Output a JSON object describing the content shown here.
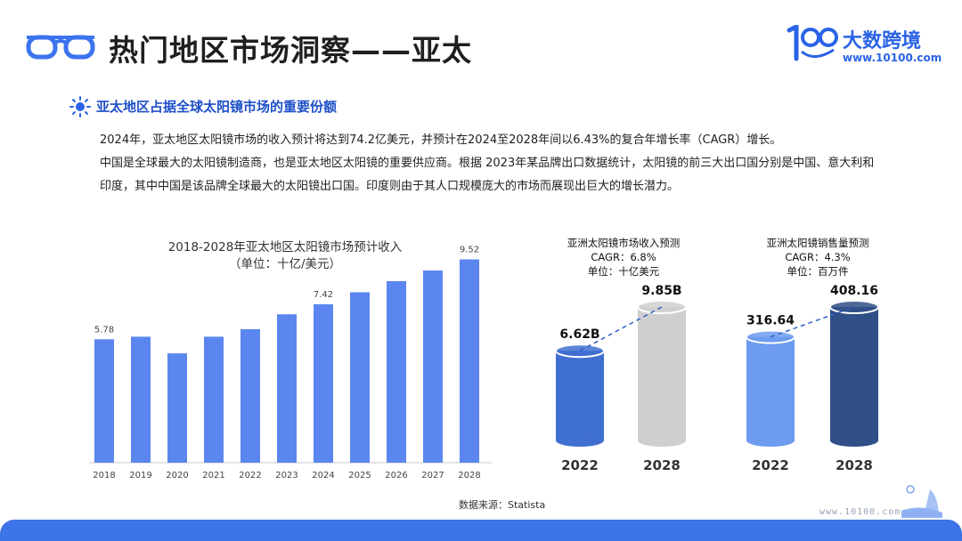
{
  "header": {
    "title": "热门地区市场洞察——亚太",
    "logo_text": "大数跨境",
    "logo_url": "www.10100.com"
  },
  "section": {
    "title": "亚太地区占据全球太阳镜市场的重要份额",
    "paragraphs": [
      "2024年，亚太地区太阳镜市场的收入预计将达到74.2亿美元，并预计在2024至2028年间以6.43%的复合年增长率（CAGR）增长。",
      "中国是全球最大的太阳镜制造商，也是亚太地区太阳镜的重要供应商。根据 2023年某品牌出口数据统计，太阳镜的前三大出口国分别是中国、意大利和印度，其中中国是该品牌全球最大的太阳镜出口国。印度则由于其人口规模庞大的市场而展现出巨大的增长潜力。"
    ]
  },
  "chart_data": [
    {
      "type": "bar",
      "title": "2018-2028年亚太地区太阳镜市场预计收入",
      "subtitle": "（单位：十亿/美元）",
      "categories": [
        "2018",
        "2019",
        "2020",
        "2021",
        "2022",
        "2023",
        "2024",
        "2025",
        "2026",
        "2027",
        "2028"
      ],
      "values": [
        5.78,
        5.9,
        5.12,
        5.9,
        6.25,
        6.95,
        7.42,
        7.98,
        8.5,
        9.0,
        9.52
      ],
      "data_labels": {
        "2018": "5.78",
        "2024": "7.42",
        "2028": "9.52"
      },
      "ylim": [
        0,
        10
      ],
      "color": "#5b86ef"
    },
    {
      "type": "bar",
      "title": "亚洲太阳镜市场收入预测",
      "subtitle_lines": [
        "CAGR：6.8%",
        "单位：十亿美元"
      ],
      "categories": [
        "2022",
        "2028"
      ],
      "values": [
        6.62,
        9.85
      ],
      "data_labels": [
        "6.62B",
        "9.85B"
      ],
      "colors": [
        "#3f6fd1",
        "#cfcfcf"
      ]
    },
    {
      "type": "bar",
      "title": "亚洲太阳镜销售量预测",
      "subtitle_lines": [
        "CAGR：4.3%",
        "单位：百万件"
      ],
      "categories": [
        "2022",
        "2028"
      ],
      "values": [
        316.64,
        408.16
      ],
      "data_labels": [
        "316.64",
        "408.16"
      ],
      "colors": [
        "#6d9bf0",
        "#2f4f86"
      ]
    }
  ],
  "footer": {
    "source": "数据来源：Statista",
    "watermark": "www.10100.com"
  },
  "colors": {
    "brand_blue": "#2a63e6",
    "band_blue": "#3d74e8",
    "section_blue": "#1e4fc8"
  }
}
